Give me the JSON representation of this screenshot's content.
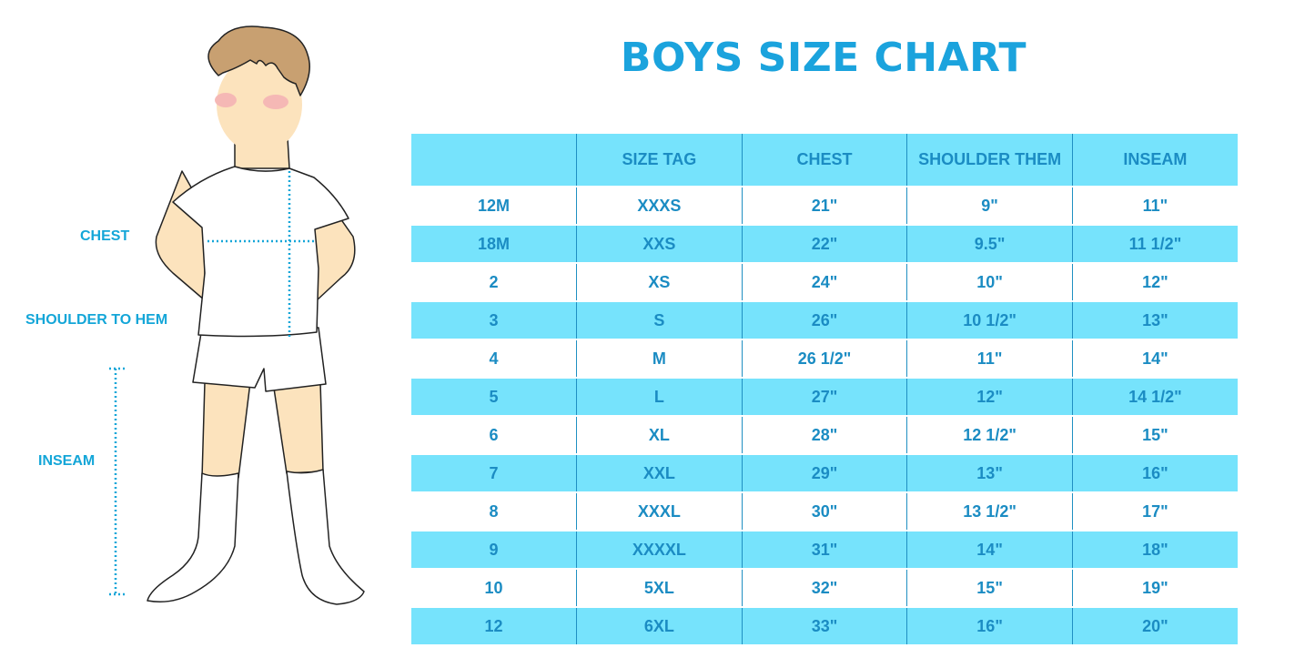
{
  "title": "BOYS SIZE CHART",
  "figure_labels": {
    "chest": "CHEST",
    "shoulder_to_hem": "SHOULDER TO HEM",
    "inseam": "INSEAM"
  },
  "colors": {
    "accent": "#1ba3dd",
    "row_highlight": "#76e3fc",
    "table_text": "#1b8cc3"
  },
  "chart_data": {
    "type": "table",
    "title": "BOYS SIZE CHART",
    "columns": [
      "",
      "SIZE TAG",
      "CHEST",
      "SHOULDER THEM",
      "INSEAM"
    ],
    "rows": [
      [
        "12M",
        "XXXS",
        "21\"",
        "9\"",
        "11\""
      ],
      [
        "18M",
        "XXS",
        "22\"",
        "9.5\"",
        "11 1/2\""
      ],
      [
        "2",
        "XS",
        "24\"",
        "10\"",
        "12\""
      ],
      [
        "3",
        "S",
        "26\"",
        "10 1/2\"",
        "13\""
      ],
      [
        "4",
        "M",
        "26 1/2\"",
        "11\"",
        "14\""
      ],
      [
        "5",
        "L",
        "27\"",
        "12\"",
        "14 1/2\""
      ],
      [
        "6",
        "XL",
        "28\"",
        "12 1/2\"",
        "15\""
      ],
      [
        "7",
        "XXL",
        "29\"",
        "13\"",
        "16\""
      ],
      [
        "8",
        "XXXL",
        "30\"",
        "13 1/2\"",
        "17\""
      ],
      [
        "9",
        "XXXXL",
        "31\"",
        "14\"",
        "18\""
      ],
      [
        "10",
        "5XL",
        "32\"",
        "15\"",
        "19\""
      ],
      [
        "12",
        "6XL",
        "33\"",
        "16\"",
        "20\""
      ]
    ]
  }
}
